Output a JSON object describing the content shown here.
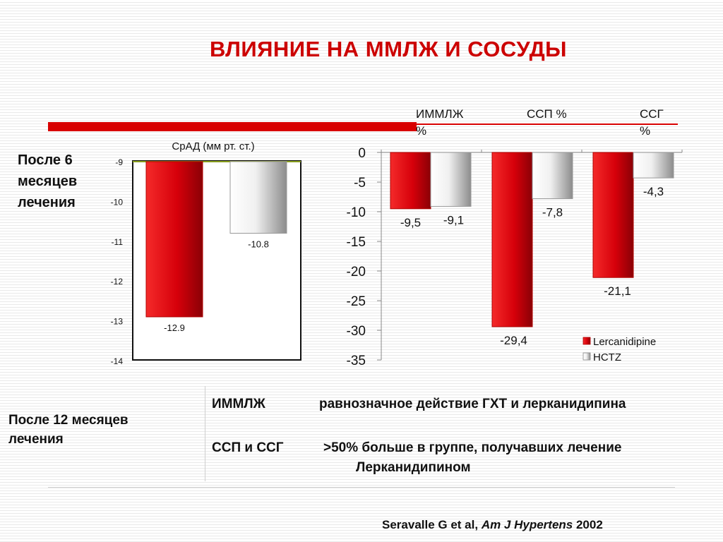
{
  "title": "ВЛИЯНИЕ  НА ММЛЖ И СОСУДЫ",
  "left_label": [
    "После 6",
    "месяцев",
    "лечения"
  ],
  "headers": {
    "immlzh": [
      "ИММЛЖ",
      "%"
    ],
    "ssp": "ССП %",
    "ssg": [
      "ССГ",
      "%"
    ]
  },
  "summary": {
    "label": [
      "После 12 месяцев",
      "лечения"
    ],
    "line1_term": "ИММЛЖ",
    "line1_text": "равнозначное действие ГХТ и лерканидипина",
    "line2_term": "ССП и ССГ",
    "line2_text": ">50% больше в группе, получавших лечение",
    "line3_text": "Лерканидипином"
  },
  "citation": {
    "authors": "Seravalle G et al, ",
    "journal": "Am J Hypertens",
    "year": " 2002"
  },
  "colors": {
    "accent": "#d80000",
    "title": "#cc0000",
    "lercanidipine": "#e8101a",
    "hctz": "#d8d8d8"
  },
  "chart_data": [
    {
      "type": "bar",
      "title": "СрАД (мм рт. ст.)",
      "categories": [
        ""
      ],
      "series": [
        {
          "values": [
            -12.9
          ]
        },
        {
          "values": [
            -10.8
          ]
        }
      ],
      "value_labels": [
        "-12.9",
        "-10.8"
      ],
      "yticks": [
        -9,
        -10,
        -11,
        -12,
        -13,
        -14
      ],
      "ylim": [
        -14,
        -9
      ],
      "grid": false,
      "legend": "none"
    },
    {
      "type": "bar",
      "categories": [
        "ИММЛЖ %",
        "ССП %",
        "ССГ %"
      ],
      "series": [
        {
          "name": "Lercanidipine",
          "values": [
            -9.5,
            -29.4,
            -21.1
          ]
        },
        {
          "name": "HCTZ",
          "values": [
            -9.1,
            -7.8,
            -4.3
          ]
        }
      ],
      "value_labels": [
        [
          "-9,5",
          "-29,4",
          "-21,1"
        ],
        [
          "-9,1",
          "-7,8",
          "-4,3"
        ]
      ],
      "yticks": [
        "0",
        "-5",
        "-10",
        "-15",
        "-20",
        "-25",
        "-30",
        "-35"
      ],
      "ylim": [
        -35,
        0
      ],
      "grid": false,
      "legend": "bottom-right"
    }
  ]
}
